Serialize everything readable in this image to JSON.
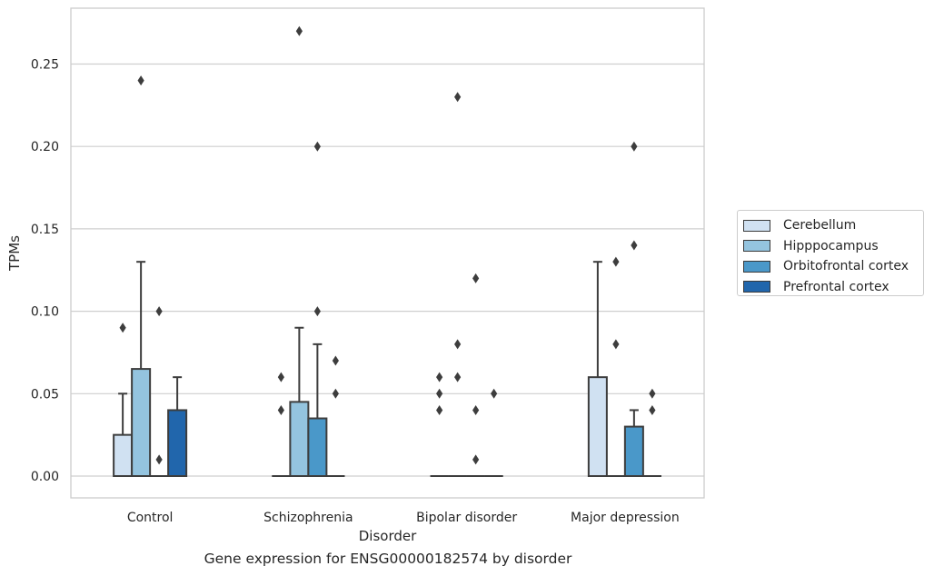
{
  "chart_data": {
    "type": "box",
    "title": "",
    "caption": "Gene expression for ENSG00000182574 by disorder",
    "xlabel": "Disorder",
    "ylabel": "TPMs",
    "ylim": [
      -0.013,
      0.284
    ],
    "yticks": [
      "0.00",
      "0.05",
      "0.10",
      "0.15",
      "0.20",
      "0.25"
    ],
    "ytick_values": [
      0,
      0.05,
      0.1,
      0.15,
      0.2,
      0.25
    ],
    "grid": true,
    "legend_position": "right",
    "categories": [
      "Control",
      "Schizophrenia",
      "Bipolar disorder",
      "Major depression"
    ],
    "series": [
      {
        "name": "Cerebellum",
        "color": "#d0e1f2",
        "boxes": [
          {
            "q1": 0,
            "median": 0,
            "q3": 0.025,
            "whisker_low": 0,
            "whisker_high": 0.05,
            "outliers": [
              0.09
            ]
          },
          {
            "q1": 0,
            "median": 0,
            "q3": 0,
            "whisker_low": 0,
            "whisker_high": 0,
            "outliers": [
              0.04,
              0.06
            ]
          },
          {
            "q1": 0,
            "median": 0,
            "q3": 0,
            "whisker_low": 0,
            "whisker_high": 0,
            "outliers": [
              0.04,
              0.05,
              0.06
            ]
          },
          {
            "q1": 0,
            "median": 0,
            "q3": 0.06,
            "whisker_low": 0,
            "whisker_high": 0.13,
            "outliers": []
          }
        ]
      },
      {
        "name": "Hipppocampus",
        "color": "#94c4df",
        "boxes": [
          {
            "q1": 0,
            "median": 0,
            "q3": 0.065,
            "whisker_low": 0,
            "whisker_high": 0.13,
            "outliers": [
              0.24
            ]
          },
          {
            "q1": 0,
            "median": 0,
            "q3": 0.045,
            "whisker_low": 0,
            "whisker_high": 0.09,
            "outliers": [
              0.27
            ]
          },
          {
            "q1": 0,
            "median": 0,
            "q3": 0,
            "whisker_low": 0,
            "whisker_high": 0,
            "outliers": [
              0.06,
              0.08,
              0.23
            ]
          },
          {
            "q1": 0,
            "median": 0,
            "q3": 0,
            "whisker_low": 0,
            "whisker_high": 0,
            "outliers": [
              0.08,
              0.13
            ]
          }
        ]
      },
      {
        "name": "Orbitofrontal cortex",
        "color": "#4a98c9",
        "boxes": [
          {
            "q1": 0,
            "median": 0,
            "q3": 0,
            "whisker_low": 0,
            "whisker_high": 0,
            "outliers": [
              0.01,
              0.1
            ]
          },
          {
            "q1": 0,
            "median": 0,
            "q3": 0.035,
            "whisker_low": 0,
            "whisker_high": 0.08,
            "outliers": [
              0.1,
              0.2
            ]
          },
          {
            "q1": 0,
            "median": 0,
            "q3": 0,
            "whisker_low": 0,
            "whisker_high": 0,
            "outliers": [
              0.01,
              0.04,
              0.12
            ]
          },
          {
            "q1": 0,
            "median": 0,
            "q3": 0.03,
            "whisker_low": 0,
            "whisker_high": 0.04,
            "outliers": [
              0.14,
              0.2
            ]
          }
        ]
      },
      {
        "name": "Prefrontal cortex",
        "color": "#2166ac",
        "boxes": [
          {
            "q1": 0,
            "median": 0,
            "q3": 0.04,
            "whisker_low": 0,
            "whisker_high": 0.06,
            "outliers": []
          },
          {
            "q1": 0,
            "median": 0,
            "q3": 0,
            "whisker_low": 0,
            "whisker_high": 0,
            "outliers": [
              0.05,
              0.07
            ]
          },
          {
            "q1": 0,
            "median": 0,
            "q3": 0,
            "whisker_low": 0,
            "whisker_high": 0,
            "outliers": [
              0.05
            ]
          },
          {
            "q1": 0,
            "median": 0,
            "q3": 0,
            "whisker_low": 0,
            "whisker_high": 0,
            "outliers": [
              0.04,
              0.05
            ]
          }
        ]
      }
    ]
  },
  "legend": {
    "items": [
      {
        "label": "Cerebellum",
        "color": "#d0e1f2"
      },
      {
        "label": "Hipppocampus",
        "color": "#94c4df"
      },
      {
        "label": "Orbitofrontal cortex",
        "color": "#4a98c9"
      },
      {
        "label": "Prefrontal cortex",
        "color": "#2166ac"
      }
    ]
  }
}
